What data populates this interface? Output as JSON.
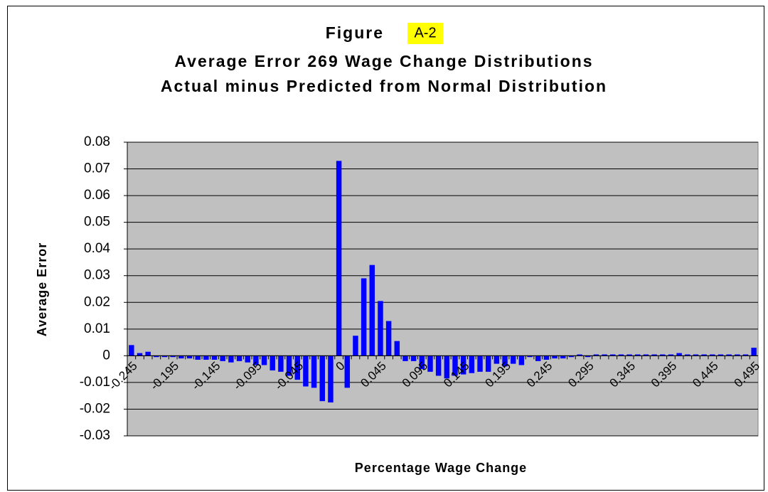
{
  "chart_data": {
    "type": "bar",
    "figure_label": "Figure",
    "figure_number": "A-2",
    "title": "Average Error  269 Wage Change Distributions",
    "subtitle": "Actual minus Predicted from Normal Distribution",
    "x_label": "Percentage Wage Change",
    "y_label": "Average Error",
    "color": "#0000ff",
    "plot_background": "#c0c0c0",
    "grid": true,
    "categories": [
      "-0.245",
      null,
      null,
      null,
      null,
      "-0.195",
      null,
      null,
      null,
      null,
      "-0.145",
      null,
      null,
      null,
      null,
      "-0.095",
      null,
      null,
      null,
      null,
      "-0.045",
      null,
      null,
      null,
      null,
      "0",
      null,
      null,
      null,
      null,
      "0.045",
      null,
      null,
      null,
      null,
      "0.095",
      null,
      null,
      null,
      null,
      "0.145",
      null,
      null,
      null,
      null,
      "0.195",
      null,
      null,
      null,
      null,
      "0.245",
      null,
      null,
      null,
      null,
      "0.295",
      null,
      null,
      null,
      null,
      "0.345",
      null,
      null,
      null,
      null,
      "0.395",
      null,
      null,
      null,
      null,
      "0.445",
      null,
      null,
      null,
      null,
      "0.495"
    ],
    "values": [
      0.004,
      0.001,
      0.0015,
      -0.0005,
      -0.0005,
      -0.0005,
      -0.001,
      -0.001,
      -0.0015,
      -0.0015,
      -0.0015,
      -0.002,
      -0.0025,
      -0.002,
      -0.0025,
      -0.0035,
      -0.0035,
      -0.0055,
      -0.006,
      -0.0075,
      -0.009,
      -0.0115,
      -0.012,
      -0.017,
      -0.0175,
      0.073,
      -0.012,
      0.0075,
      0.029,
      0.034,
      0.0205,
      0.013,
      0.0055,
      -0.002,
      -0.002,
      -0.005,
      -0.006,
      -0.0075,
      -0.0085,
      -0.0075,
      -0.007,
      -0.0065,
      -0.006,
      -0.006,
      -0.003,
      -0.004,
      -0.003,
      -0.0035,
      -0.0005,
      -0.002,
      -0.0015,
      -0.001,
      -0.001,
      -0.0005,
      0.0005,
      -0.0005,
      0.0005,
      0.0005,
      0.0005,
      0.0005,
      0.0005,
      0.0005,
      0.0005,
      0.0005,
      0.0005,
      0.0005,
      0.001,
      0.0005,
      0.0005,
      0.0005,
      0.0005,
      0.0005,
      0.0005,
      0.0005,
      0.0005,
      0.003
    ],
    "ylim": [
      -0.03,
      0.08
    ],
    "yticks": [
      -0.03,
      -0.02,
      -0.01,
      0,
      0.01,
      0.02,
      0.03,
      0.04,
      0.05,
      0.06,
      0.07,
      0.08
    ]
  }
}
